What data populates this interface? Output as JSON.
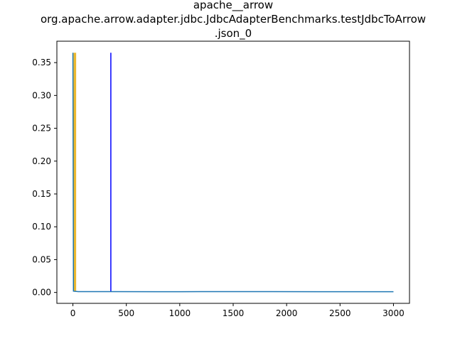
{
  "chart_data": {
    "type": "line",
    "title_lines": [
      "apache__arrow",
      "org.apache.arrow.adapter.jdbc.JdbcAdapterBenchmarks.testJdbcToArrow",
      ".json_0"
    ],
    "xlabel": "",
    "ylabel": "",
    "xlim": [
      -150,
      3150
    ],
    "ylim": [
      -0.0166,
      0.3826
    ],
    "x_ticks": [
      0,
      500,
      1000,
      1500,
      2000,
      2500,
      3000
    ],
    "x_tick_labels": [
      "0",
      "500",
      "1000",
      "1500",
      "2000",
      "2500",
      "3000"
    ],
    "y_ticks": [
      0.0,
      0.05,
      0.1,
      0.15,
      0.2,
      0.25,
      0.3,
      0.35
    ],
    "y_tick_labels": [
      "0.00",
      "0.05",
      "0.10",
      "0.15",
      "0.20",
      "0.25",
      "0.30",
      "0.35"
    ],
    "grid": false,
    "series": [
      {
        "color": "#1f77b4",
        "points": [
          [
            0,
            0.365
          ],
          [
            5,
            0.002
          ],
          [
            50,
            0.0013
          ],
          [
            350,
            0.0012
          ],
          [
            800,
            0.0011
          ],
          [
            1200,
            0.0012
          ],
          [
            1700,
            0.0013
          ],
          [
            1800,
            0.0012
          ],
          [
            2300,
            0.0011
          ],
          [
            3000,
            0.0011
          ]
        ]
      }
    ],
    "vlines": [
      {
        "x": 12,
        "ymin": 0.0012,
        "ymax": 0.365,
        "color": "#e6a800"
      },
      {
        "x": 25,
        "ymin": 0.0012,
        "ymax": 0.365,
        "color": "#e6a800"
      },
      {
        "x": 355,
        "ymin": 0.0012,
        "ymax": 0.365,
        "color": "#0000ff"
      }
    ]
  }
}
